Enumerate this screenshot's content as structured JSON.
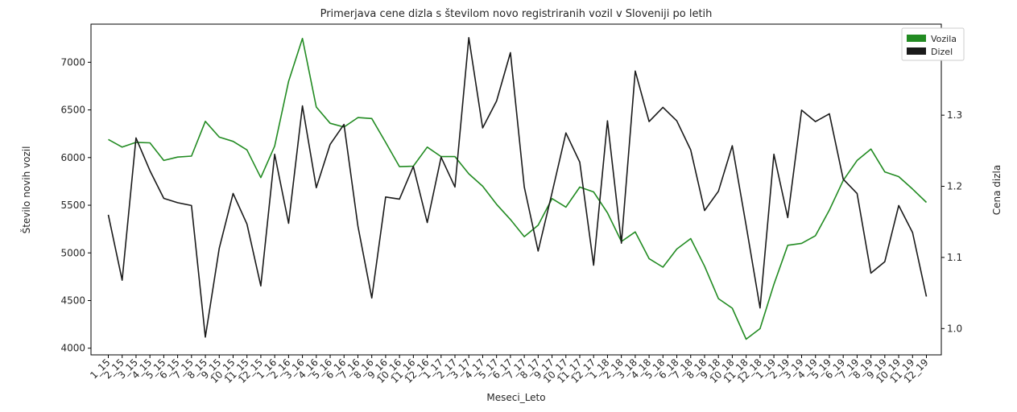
{
  "chart_data": {
    "type": "line",
    "title": "Primerjava cene dizla s številom novo registriranih vozil v Sloveniji po letih",
    "xlabel": "Meseci_Leto",
    "ylabel": "Število novih vozil",
    "ylabel_right": "Cena dizla",
    "categories": [
      "1_15",
      "2_15",
      "3_15",
      "4_15",
      "5_15",
      "6_15",
      "7_15",
      "8_15",
      "9_15",
      "10_15",
      "11_15",
      "12_15",
      "1_16",
      "2_16",
      "3_16",
      "4_16",
      "5_16",
      "6_16",
      "7_16",
      "8_16",
      "9_16",
      "10_16",
      "11_16",
      "12_16",
      "1_17",
      "2_17",
      "3_17",
      "4_17",
      "5_17",
      "6_17",
      "7_17",
      "8_17",
      "9_17",
      "10_17",
      "11_17",
      "12_17",
      "1_18",
      "2_18",
      "3_18",
      "4_18",
      "5_18",
      "6_18",
      "7_18",
      "8_18",
      "9_18",
      "10_18",
      "11_18",
      "12_18",
      "1_19",
      "2_19",
      "3_19",
      "4_19",
      "5_19",
      "6_19",
      "7_19",
      "8_19",
      "9_19",
      "10_19",
      "11_19",
      "12_19"
    ],
    "ylim": [
      3930,
      7400
    ],
    "ylim_right": [
      0.963,
      1.428
    ],
    "yticks": [
      4000,
      4500,
      5000,
      5500,
      6000,
      6500,
      7000
    ],
    "yticks_right": [
      "1.0",
      "1.1",
      "1.2",
      "1.3",
      "1.4"
    ],
    "legend_position": "top-right",
    "grid": false,
    "series": [
      {
        "name": "Vozila",
        "axis": "left",
        "color": "#228B22",
        "values": [
          6190,
          6110,
          6160,
          6155,
          5970,
          6005,
          6015,
          6380,
          6215,
          6170,
          6080,
          5790,
          6120,
          6800,
          7250,
          6530,
          6360,
          6320,
          6420,
          6410,
          6160,
          5905,
          5910,
          6110,
          6010,
          6010,
          5830,
          5700,
          5510,
          5350,
          5170,
          5290,
          5570,
          5480,
          5690,
          5640,
          5420,
          5120,
          5220,
          4940,
          4850,
          5040,
          5150,
          4860,
          4520,
          4420,
          4095,
          4205,
          4670,
          5080,
          5100,
          5180,
          5450,
          5760,
          5970,
          6090,
          5850,
          5800,
          5670,
          5530
        ]
      },
      {
        "name": "Dizel",
        "axis": "right",
        "color": "#1a1a1a",
        "values": [
          1.16,
          1.068,
          1.268,
          1.222,
          1.183,
          1.177,
          1.173,
          0.988,
          1.113,
          1.19,
          1.147,
          1.06,
          1.245,
          1.148,
          1.313,
          1.198,
          1.259,
          1.287,
          1.144,
          1.043,
          1.185,
          1.182,
          1.228,
          1.149,
          1.241,
          1.199,
          1.409,
          1.282,
          1.32,
          1.388,
          1.199,
          1.109,
          1.191,
          1.275,
          1.234,
          1.089,
          1.292,
          1.12,
          1.362,
          1.291,
          1.311,
          1.292,
          1.251,
          1.166,
          1.193,
          1.257,
          1.145,
          1.029,
          1.245,
          1.156,
          1.307,
          1.291,
          1.302,
          1.21,
          1.19,
          1.078,
          1.094,
          1.173,
          1.135,
          1.045
        ]
      }
    ]
  }
}
